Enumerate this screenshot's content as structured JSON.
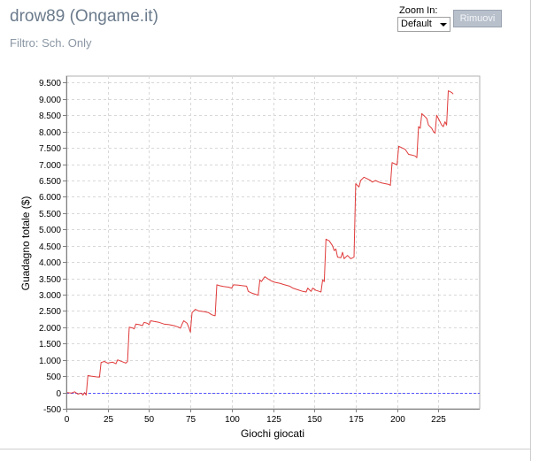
{
  "header": {
    "title": "drow89 (Ongame.it)",
    "filter": "Filtro: Sch. Only"
  },
  "zoom": {
    "label": "Zoom In:",
    "selected": "Default",
    "remove_label": "Rimuovi"
  },
  "colors": {
    "line": "#e03a3a",
    "zero_line": "#5555ff",
    "grid": "#d8d8d8",
    "axis": "#808080"
  },
  "chart_data": {
    "type": "line",
    "title": "",
    "xlabel": "Giochi giocati",
    "ylabel": "Guadagno totale  ($)",
    "xlim": [
      0,
      250
    ],
    "ylim": [
      -500,
      9700
    ],
    "x_ticks": [
      0,
      25,
      50,
      75,
      100,
      125,
      150,
      175,
      200,
      225
    ],
    "x_tick_labels": [
      "0",
      "25",
      "50",
      "75",
      "100",
      "125",
      "150",
      "175",
      "200",
      "225"
    ],
    "y_ticks": [
      -500,
      0,
      500,
      1000,
      1500,
      2000,
      2500,
      3000,
      3500,
      4000,
      4500,
      5000,
      5500,
      6000,
      6500,
      7000,
      7500,
      8000,
      8500,
      9000,
      9500
    ],
    "y_tick_labels": [
      "-500",
      "0",
      "500",
      "1.000",
      "1.500",
      "2.000",
      "2.500",
      "3.000",
      "3.500",
      "4.000",
      "4.500",
      "5.000",
      "5.500",
      "6.000",
      "6.500",
      "7.000",
      "7.500",
      "8.000",
      "8.500",
      "9.000",
      "9.500"
    ],
    "grid": true,
    "zero_reference_line": 0,
    "series": [
      {
        "points": [
          [
            0,
            0
          ],
          [
            3,
            -20
          ],
          [
            5,
            20
          ],
          [
            7,
            -50
          ],
          [
            9,
            -20
          ],
          [
            10,
            -80
          ],
          [
            11,
            0
          ],
          [
            12,
            -80
          ],
          [
            13,
            520
          ],
          [
            15,
            500
          ],
          [
            18,
            480
          ],
          [
            20,
            470
          ],
          [
            21,
            920
          ],
          [
            23,
            950
          ],
          [
            25,
            900
          ],
          [
            28,
            930
          ],
          [
            30,
            880
          ],
          [
            31,
            1000
          ],
          [
            33,
            960
          ],
          [
            35,
            920
          ],
          [
            36,
            900
          ],
          [
            37,
            950
          ],
          [
            38,
            2000
          ],
          [
            40,
            1980
          ],
          [
            41,
            1950
          ],
          [
            42,
            2100
          ],
          [
            44,
            2080
          ],
          [
            46,
            2050
          ],
          [
            47,
            2150
          ],
          [
            49,
            2120
          ],
          [
            50,
            2080
          ],
          [
            51,
            2200
          ],
          [
            53,
            2180
          ],
          [
            56,
            2150
          ],
          [
            59,
            2100
          ],
          [
            62,
            2080
          ],
          [
            65,
            2050
          ],
          [
            68,
            2000
          ],
          [
            69,
            1970
          ],
          [
            70,
            2100
          ],
          [
            71,
            2200
          ],
          [
            73,
            2120
          ],
          [
            74,
            2000
          ],
          [
            75,
            1850
          ],
          [
            76,
            2450
          ],
          [
            78,
            2550
          ],
          [
            80,
            2500
          ],
          [
            83,
            2480
          ],
          [
            86,
            2450
          ],
          [
            88,
            2380
          ],
          [
            90,
            2350
          ],
          [
            91,
            3300
          ],
          [
            93,
            3270
          ],
          [
            95,
            3250
          ],
          [
            98,
            3230
          ],
          [
            100,
            3200
          ],
          [
            101,
            3300
          ],
          [
            104,
            3290
          ],
          [
            107,
            3270
          ],
          [
            109,
            3260
          ],
          [
            110,
            3100
          ],
          [
            112,
            3050
          ],
          [
            115,
            3000
          ],
          [
            116,
            2980
          ],
          [
            117,
            3450
          ],
          [
            118,
            3400
          ],
          [
            119,
            3480
          ],
          [
            120,
            3550
          ],
          [
            122,
            3480
          ],
          [
            124,
            3420
          ],
          [
            126,
            3380
          ],
          [
            129,
            3350
          ],
          [
            132,
            3300
          ],
          [
            135,
            3260
          ],
          [
            137,
            3200
          ],
          [
            140,
            3150
          ],
          [
            143,
            3100
          ],
          [
            145,
            3080
          ],
          [
            146,
            3200
          ],
          [
            147,
            3150
          ],
          [
            148,
            3100
          ],
          [
            149,
            3200
          ],
          [
            151,
            3130
          ],
          [
            153,
            3100
          ],
          [
            154,
            3080
          ],
          [
            155,
            3450
          ],
          [
            156,
            3400
          ],
          [
            157,
            4700
          ],
          [
            159,
            4650
          ],
          [
            161,
            4500
          ],
          [
            162,
            4350
          ],
          [
            163,
            4400
          ],
          [
            164,
            4150
          ],
          [
            166,
            4130
          ],
          [
            167,
            4300
          ],
          [
            168,
            4100
          ],
          [
            170,
            4200
          ],
          [
            172,
            4100
          ],
          [
            174,
            4150
          ],
          [
            175,
            6400
          ],
          [
            176,
            6350
          ],
          [
            177,
            6300
          ],
          [
            178,
            6500
          ],
          [
            180,
            6600
          ],
          [
            182,
            6550
          ],
          [
            184,
            6500
          ],
          [
            185,
            6450
          ],
          [
            187,
            6500
          ],
          [
            189,
            6450
          ],
          [
            191,
            6420
          ],
          [
            193,
            6400
          ],
          [
            195,
            6380
          ],
          [
            196,
            6350
          ],
          [
            197,
            7050
          ],
          [
            199,
            7000
          ],
          [
            200,
            6980
          ],
          [
            201,
            7550
          ],
          [
            203,
            7500
          ],
          [
            205,
            7450
          ],
          [
            207,
            7300
          ],
          [
            209,
            7280
          ],
          [
            211,
            7250
          ],
          [
            212,
            7200
          ],
          [
            213,
            8150
          ],
          [
            214,
            8100
          ],
          [
            215,
            8550
          ],
          [
            216,
            8500
          ],
          [
            218,
            8400
          ],
          [
            219,
            8200
          ],
          [
            221,
            8100
          ],
          [
            222,
            8000
          ],
          [
            223,
            7950
          ],
          [
            224,
            8500
          ],
          [
            225,
            8400
          ],
          [
            226,
            8300
          ],
          [
            227,
            8200
          ],
          [
            228,
            8150
          ],
          [
            229,
            8300
          ],
          [
            230,
            8200
          ],
          [
            231,
            9250
          ],
          [
            233,
            9200
          ],
          [
            234,
            9150
          ]
        ]
      }
    ]
  }
}
